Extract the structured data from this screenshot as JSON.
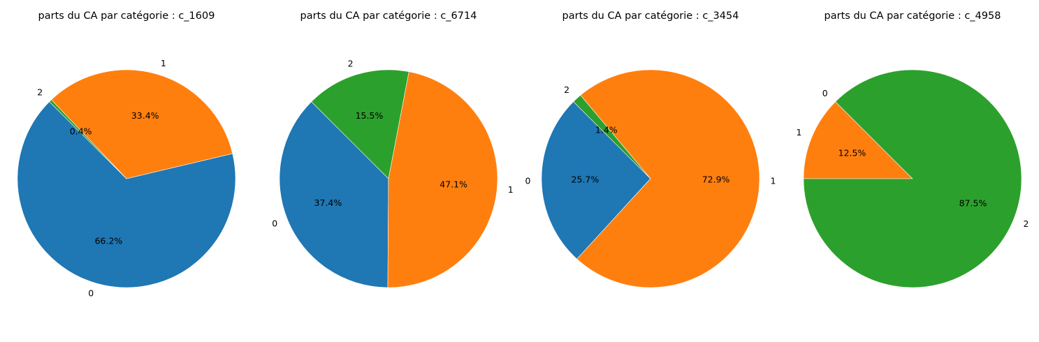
{
  "chart_data": [
    {
      "type": "pie",
      "title": "parts du CA par catégorie : c_1609",
      "slices": [
        {
          "label": "0",
          "value": 66.2,
          "pct_label": "66.2%",
          "color": "#1f77b4"
        },
        {
          "label": "1",
          "value": 33.4,
          "pct_label": "33.4%",
          "color": "#ff7f0e"
        },
        {
          "label": "2",
          "value": 0.4,
          "pct_label": "0.4%",
          "color": "#2ca02c"
        }
      ]
    },
    {
      "type": "pie",
      "title": "parts du CA par catégorie : c_6714",
      "slices": [
        {
          "label": "0",
          "value": 37.4,
          "pct_label": "37.4%",
          "color": "#1f77b4"
        },
        {
          "label": "1",
          "value": 47.1,
          "pct_label": "47.1%",
          "color": "#ff7f0e"
        },
        {
          "label": "2",
          "value": 15.5,
          "pct_label": "15.5%",
          "color": "#2ca02c"
        }
      ]
    },
    {
      "type": "pie",
      "title": "parts du CA par catégorie : c_3454",
      "slices": [
        {
          "label": "0",
          "value": 25.7,
          "pct_label": "25.7%",
          "color": "#1f77b4"
        },
        {
          "label": "1",
          "value": 72.9,
          "pct_label": "72.9%",
          "color": "#ff7f0e"
        },
        {
          "label": "2",
          "value": 1.4,
          "pct_label": "1.4%",
          "color": "#2ca02c"
        }
      ]
    },
    {
      "type": "pie",
      "title": "parts du CA par catégorie : c_4958",
      "slices": [
        {
          "label": "0",
          "value": 0.0,
          "pct_label": "0.0%",
          "color": "#1f77b4"
        },
        {
          "label": "1",
          "value": 12.5,
          "pct_label": "12.5%",
          "color": "#ff7f0e"
        },
        {
          "label": "2",
          "value": 87.5,
          "pct_label": "87.5%",
          "color": "#2ca02c"
        }
      ]
    }
  ]
}
